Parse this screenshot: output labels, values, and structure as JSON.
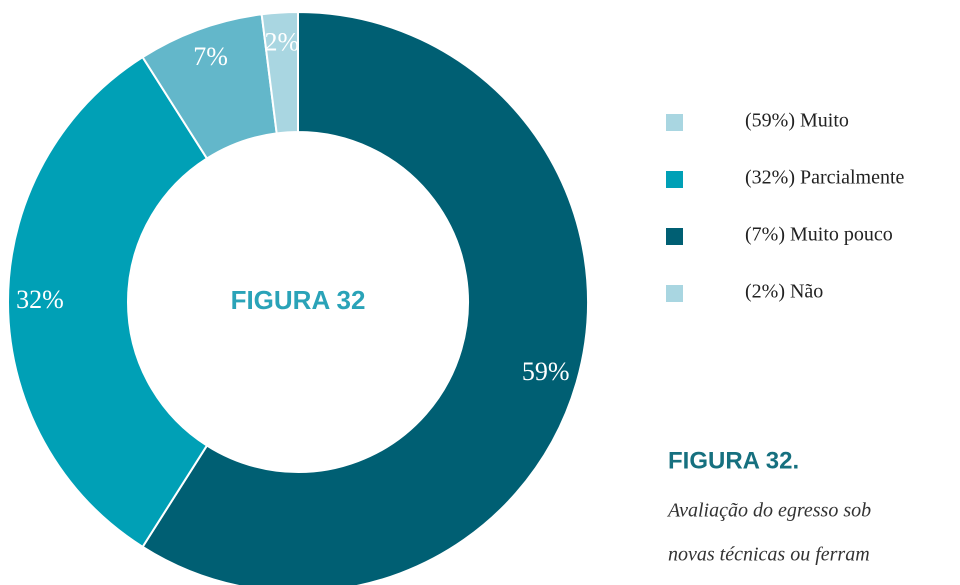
{
  "chart_data": {
    "type": "pie",
    "center_label": "FIGURA 32",
    "categories": [
      "(59%) Muito",
      "(32%) Parcialmente",
      "(7%) Muito pouco",
      "(2%) Não"
    ],
    "values": [
      59,
      32,
      7,
      2
    ],
    "value_labels": [
      "59%",
      "32%",
      "7%",
      "2%"
    ],
    "colors": [
      "#005f73",
      "#00a0b6",
      "#63b7ca",
      "#a9d6e1"
    ],
    "legend_colors": [
      "#a9d6e1",
      "#00a0b6",
      "#005f73",
      "#a9d6e1"
    ],
    "caption_title": "FIGURA 32.",
    "caption_lines": [
      "Avaliação do egresso sob",
      "novas técnicas ou ferram"
    ]
  }
}
